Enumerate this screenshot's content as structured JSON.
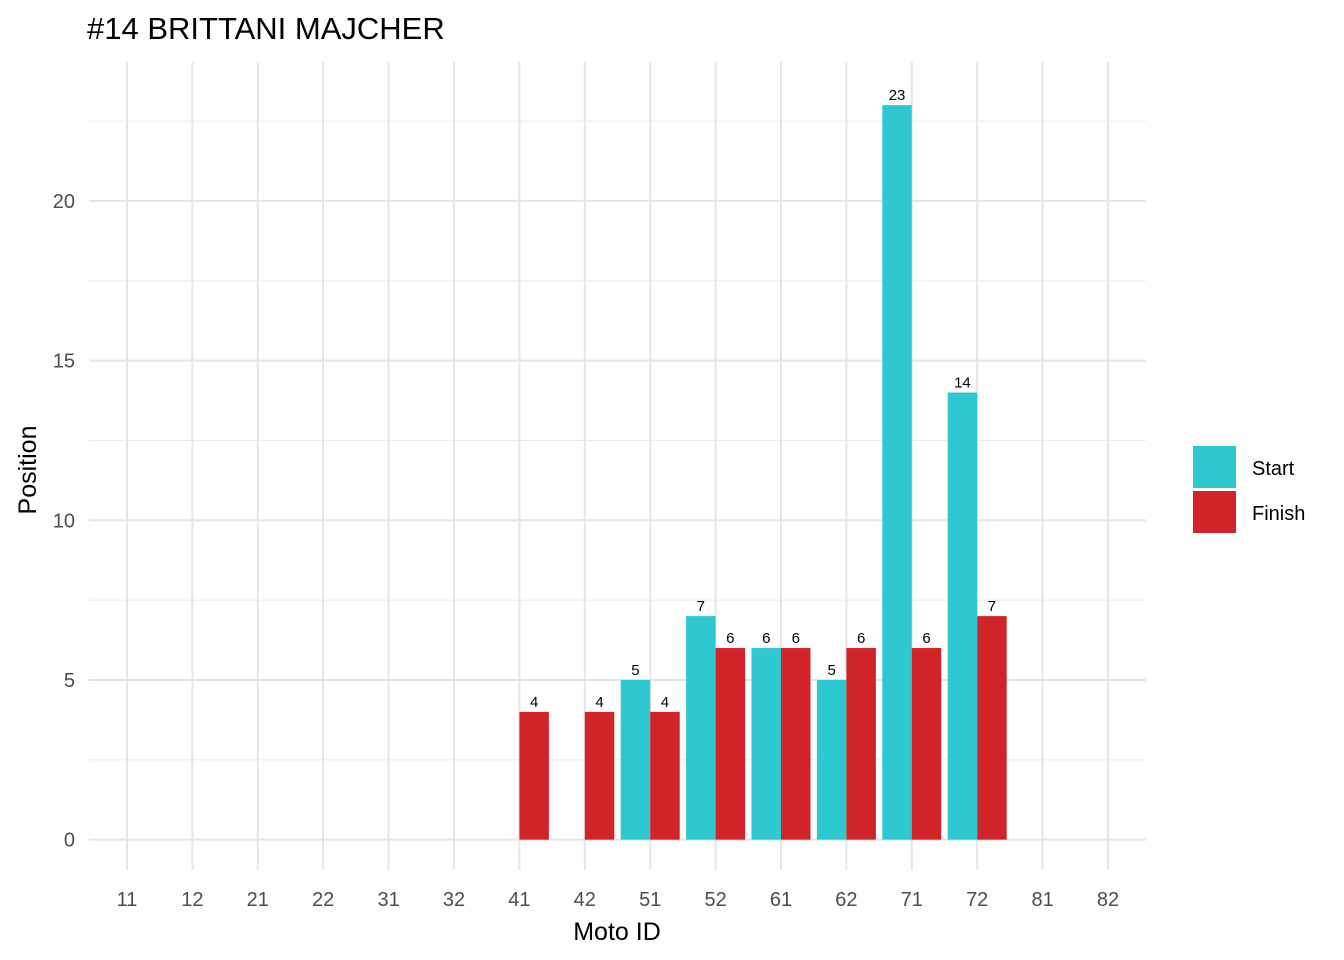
{
  "chart_data": {
    "type": "bar",
    "title": "#14 BRITTANI MAJCHER",
    "xlabel": "Moto ID",
    "ylabel": "Position",
    "categories": [
      "11",
      "12",
      "21",
      "22",
      "31",
      "32",
      "41",
      "42",
      "51",
      "52",
      "61",
      "62",
      "71",
      "72",
      "81",
      "82"
    ],
    "series": [
      {
        "name": "Start",
        "color": "#2ec8d1",
        "values": [
          null,
          null,
          null,
          null,
          null,
          null,
          null,
          null,
          5,
          7,
          6,
          5,
          23,
          14,
          null,
          null
        ]
      },
      {
        "name": "Finish",
        "color": "#d12428",
        "values": [
          null,
          null,
          null,
          null,
          null,
          null,
          4,
          4,
          4,
          6,
          6,
          6,
          6,
          7,
          null,
          null
        ]
      }
    ],
    "yticks": [
      0,
      5,
      10,
      15,
      20
    ],
    "ylim": [
      -0.95,
      24.35
    ],
    "grid": true,
    "legend": "right"
  }
}
